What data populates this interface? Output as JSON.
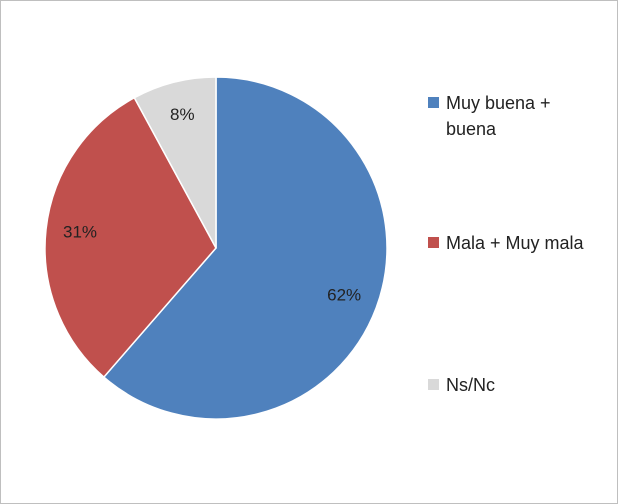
{
  "chart_data": {
    "type": "pie",
    "categories": [
      "Muy buena + buena",
      "Mala + Muy mala",
      "Ns/Nc"
    ],
    "values": [
      62,
      31,
      8
    ],
    "value_labels": [
      "62%",
      "31%",
      "8%"
    ],
    "colors": [
      "#4f81bd",
      "#c0504d",
      "#d9d9d9"
    ],
    "legend": "right"
  }
}
